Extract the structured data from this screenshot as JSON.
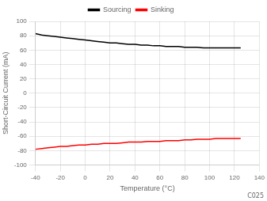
{
  "chart_data": {
    "type": "line",
    "xlabel": "Temperature (°C)",
    "ylabel": "Short-Circuit Current (mA)",
    "annotations": [
      "C025"
    ],
    "x": [
      -40,
      -35,
      -30,
      -25,
      -20,
      -15,
      -10,
      -5,
      0,
      5,
      10,
      15,
      20,
      25,
      30,
      35,
      40,
      45,
      50,
      55,
      60,
      65,
      70,
      75,
      80,
      85,
      90,
      95,
      100,
      105,
      110,
      115,
      120,
      125
    ],
    "series": [
      {
        "name": "Sourcing",
        "color": "#000000",
        "values": [
          83,
          81,
          80,
          79,
          78,
          77,
          76,
          75,
          74,
          73,
          72,
          71,
          70,
          70,
          69,
          68,
          68,
          67,
          67,
          66,
          66,
          65,
          65,
          65,
          64,
          64,
          64,
          63,
          63,
          63,
          63,
          63,
          63,
          63
        ]
      },
      {
        "name": "Sinking",
        "color": "#ff0000",
        "values": [
          -78,
          -77,
          -76,
          -75,
          -74,
          -74,
          -73,
          -72,
          -72,
          -71,
          -71,
          -70,
          -70,
          -70,
          -69,
          -68,
          -68,
          -68,
          -67,
          -67,
          -67,
          -66,
          -66,
          -66,
          -65,
          -65,
          -64,
          -64,
          -64,
          -63,
          -63,
          -63,
          -63,
          -63
        ]
      }
    ],
    "xlim": [
      -40,
      140
    ],
    "ylim": [
      -100,
      100
    ],
    "xticks": [
      -40,
      -20,
      0,
      20,
      40,
      60,
      80,
      100,
      120,
      140
    ],
    "yticks": [
      -100,
      -80,
      -60,
      -40,
      -20,
      0,
      20,
      40,
      60,
      80,
      100
    ],
    "grid": true,
    "legend": "top"
  }
}
